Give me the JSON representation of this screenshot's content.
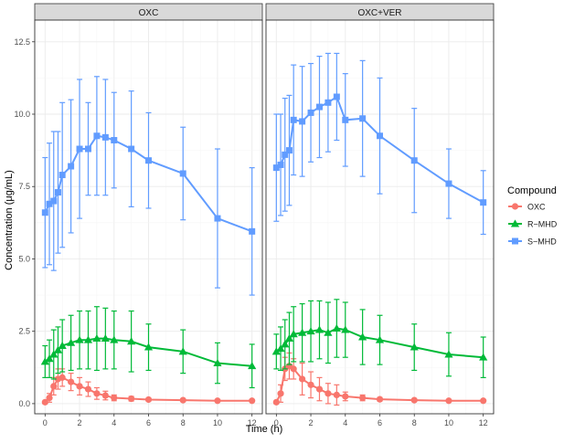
{
  "chart_data": {
    "type": "line",
    "ylabel": "Concentration (μg/mL)",
    "xlabel": "Time (h)",
    "xlim": [
      -0.6,
      12.6
    ],
    "ylim": [
      -0.35,
      13.25
    ],
    "xticks": [
      0,
      2,
      4,
      6,
      8,
      10,
      12
    ],
    "xtick_labels": [
      "0",
      "2",
      "4",
      "6",
      "8",
      "10",
      "12"
    ],
    "yticks": [
      0,
      2.5,
      5,
      7.5,
      10,
      12.5
    ],
    "ytick_labels": [
      "0.0",
      "2.5",
      "5.0",
      "7.5",
      "10.0",
      "12.5"
    ],
    "grid": true,
    "legend": {
      "title": "Compound",
      "position": "right",
      "entries": [
        {
          "name": "OXC",
          "color": "#F8766D",
          "marker": "circle"
        },
        {
          "name": "R−MHD",
          "color": "#00BA38",
          "marker": "triangle"
        },
        {
          "name": "S−MHD",
          "color": "#619CFF",
          "marker": "square"
        }
      ]
    },
    "panels": [
      {
        "title": "OXC",
        "series": [
          {
            "name": "OXC",
            "x": [
              0,
              0.25,
              0.5,
              0.75,
              1,
              1.5,
              2,
              2.5,
              3,
              3.5,
              4,
              5,
              6,
              8,
              10,
              12
            ],
            "y": [
              0.05,
              0.2,
              0.6,
              0.85,
              0.9,
              0.75,
              0.6,
              0.5,
              0.35,
              0.28,
              0.2,
              0.17,
              0.14,
              0.12,
              0.1,
              0.1
            ],
            "err": [
              0,
              0.15,
              0.3,
              0.35,
              0.3,
              0.3,
              0.3,
              0.25,
              0.2,
              0.15,
              0.1,
              0.08,
              0.05,
              0.04,
              0.03,
              0.03
            ]
          },
          {
            "name": "R−MHD",
            "x": [
              0,
              0.25,
              0.5,
              0.75,
              1,
              1.5,
              2,
              2.5,
              3,
              3.5,
              4,
              5,
              6,
              8,
              10,
              12
            ],
            "y": [
              1.45,
              1.55,
              1.7,
              1.85,
              2.0,
              2.1,
              2.2,
              2.2,
              2.25,
              2.25,
              2.2,
              2.15,
              1.95,
              1.8,
              1.4,
              1.3
            ],
            "err": [
              0.55,
              0.65,
              0.85,
              0.8,
              0.9,
              0.95,
              1.0,
              1.0,
              1.1,
              1.05,
              1.0,
              1.05,
              0.8,
              0.75,
              0.7,
              0.75
            ]
          },
          {
            "name": "S−MHD",
            "x": [
              0,
              0.25,
              0.5,
              0.75,
              1,
              1.5,
              2,
              2.5,
              3,
              3.5,
              4,
              5,
              6,
              8,
              10,
              12
            ],
            "y": [
              6.6,
              6.9,
              7.0,
              7.3,
              7.9,
              8.2,
              8.8,
              8.8,
              9.25,
              9.2,
              9.1,
              8.8,
              8.4,
              7.95,
              6.4,
              5.95
            ],
            "err": [
              1.9,
              2.1,
              2.4,
              2.1,
              2.5,
              2.3,
              2.4,
              1.6,
              2.05,
              2.0,
              1.65,
              2.0,
              1.65,
              1.6,
              2.4,
              2.2
            ]
          }
        ]
      },
      {
        "title": "OXC+VER",
        "series": [
          {
            "name": "OXC",
            "x": [
              0,
              0.25,
              0.5,
              0.75,
              1,
              1.5,
              2,
              2.5,
              3,
              3.5,
              4,
              5,
              6,
              8,
              10,
              12
            ],
            "y": [
              0.05,
              0.35,
              1.2,
              1.3,
              1.2,
              0.85,
              0.65,
              0.5,
              0.35,
              0.3,
              0.25,
              0.2,
              0.15,
              0.12,
              0.1,
              0.1
            ],
            "err": [
              0,
              0.3,
              0.4,
              0.45,
              0.35,
              0.55,
              0.45,
              0.4,
              0.35,
              0.35,
              0.15,
              0.1,
              0.06,
              0.04,
              0.03,
              0.03
            ]
          },
          {
            "name": "R−MHD",
            "x": [
              0,
              0.25,
              0.5,
              0.75,
              1,
              1.5,
              2,
              2.5,
              3,
              3.5,
              4,
              5,
              6,
              8,
              10,
              12
            ],
            "y": [
              1.8,
              1.9,
              2.05,
              2.25,
              2.4,
              2.45,
              2.5,
              2.55,
              2.45,
              2.6,
              2.55,
              2.3,
              2.2,
              1.95,
              1.7,
              1.6
            ],
            "err": [
              0.6,
              0.75,
              0.85,
              0.9,
              0.95,
              1.0,
              1.05,
              1.0,
              1.05,
              1.0,
              0.95,
              0.95,
              0.85,
              0.8,
              0.75,
              0.7
            ]
          },
          {
            "name": "S−MHD",
            "x": [
              0,
              0.25,
              0.5,
              0.75,
              1,
              1.5,
              2,
              2.5,
              3,
              3.5,
              4,
              5,
              6,
              8,
              10,
              12
            ],
            "y": [
              8.15,
              8.25,
              8.6,
              8.75,
              9.8,
              9.75,
              10.05,
              10.25,
              10.4,
              10.6,
              9.8,
              9.85,
              9.25,
              8.4,
              7.6,
              6.95
            ],
            "err": [
              1.85,
              1.75,
              1.95,
              1.9,
              1.9,
              1.9,
              1.7,
              1.75,
              1.7,
              1.5,
              1.6,
              2.0,
              2.0,
              1.8,
              1.2,
              1.1
            ]
          }
        ]
      }
    ]
  }
}
